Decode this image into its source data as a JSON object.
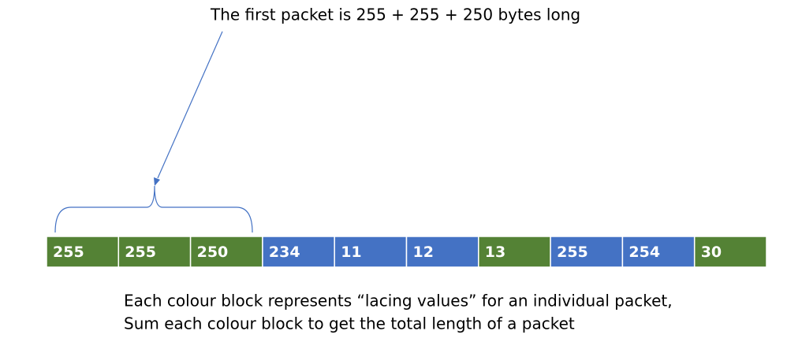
{
  "annotation": "The first packet is 255 + 255 + 250 bytes long",
  "cells": [
    {
      "text": "255",
      "color": "#548235"
    },
    {
      "text": "255",
      "color": "#548235"
    },
    {
      "text": "250",
      "color": "#548235"
    },
    {
      "text": "234",
      "color": "#4472c4"
    },
    {
      "text": "11",
      "color": "#4472c4"
    },
    {
      "text": "12",
      "color": "#4472c4"
    },
    {
      "text": "13",
      "color": "#548235"
    },
    {
      "text": "255",
      "color": "#4472c4"
    },
    {
      "text": "254",
      "color": "#4472c4"
    },
    {
      "text": "30",
      "color": "#548235"
    }
  ],
  "caption": [
    "Each colour block represents “lacing values” for an individual packet,",
    "Sum each colour block to get the total length of a packet"
  ]
}
